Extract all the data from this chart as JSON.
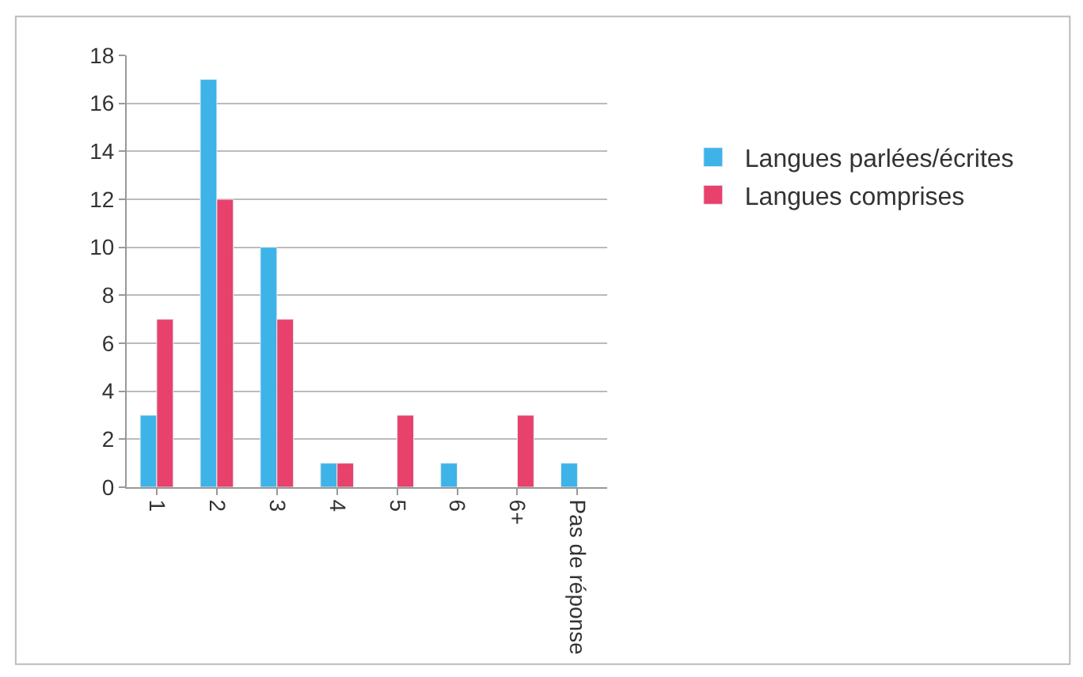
{
  "chart_data": {
    "type": "bar",
    "categories": [
      "1",
      "2",
      "3",
      "4",
      "5",
      "6",
      "6+",
      "Pas de réponse"
    ],
    "series": [
      {
        "name": "Langues parlées/écrites",
        "color": "#3db3e8",
        "values": [
          3,
          17,
          10,
          1,
          null,
          1,
          null,
          1
        ]
      },
      {
        "name": "Langues comprises",
        "color": "#e8416b",
        "values": [
          7,
          12,
          7,
          1,
          3,
          null,
          3,
          null
        ]
      }
    ],
    "ylim": [
      0,
      18
    ],
    "yticks": [
      0,
      2,
      4,
      6,
      8,
      10,
      12,
      14,
      16,
      18
    ],
    "grid": "y",
    "legend": "right"
  }
}
